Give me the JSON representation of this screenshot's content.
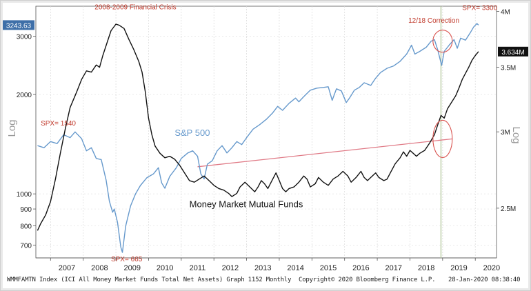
{
  "chart_data": {
    "type": "line",
    "left_axis": {
      "label": "Log",
      "ticks": [
        700,
        800,
        900,
        1000,
        2000,
        3000
      ],
      "range": [
        640,
        3700
      ],
      "scale": "log"
    },
    "right_axis": {
      "label": "Log",
      "ticks": [
        "2.5M",
        "3M",
        "3.5M",
        "4M"
      ],
      "tick_values": [
        2.5,
        3.0,
        3.5,
        4.0
      ],
      "range": [
        2.22,
        4.05
      ],
      "scale": "log"
    },
    "x_ticks": [
      "2007",
      "2008",
      "2009",
      "2010",
      "2011",
      "2012",
      "2013",
      "2014",
      "2015",
      "2016",
      "2017",
      "2018",
      "2019",
      "2020"
    ],
    "x_range": [
      2006.55,
      2020.65
    ],
    "grid": true,
    "series": [
      {
        "name": "S&P 500",
        "axis": "left",
        "color": "#6699cc",
        "last_value_label": "3243.63",
        "points": [
          [
            2006.6,
            1400
          ],
          [
            2006.8,
            1380
          ],
          [
            2007.0,
            1440
          ],
          [
            2007.2,
            1420
          ],
          [
            2007.4,
            1510
          ],
          [
            2007.6,
            1480
          ],
          [
            2007.75,
            1540
          ],
          [
            2007.95,
            1470
          ],
          [
            2008.1,
            1350
          ],
          [
            2008.25,
            1380
          ],
          [
            2008.4,
            1280
          ],
          [
            2008.55,
            1270
          ],
          [
            2008.7,
            1100
          ],
          [
            2008.8,
            950
          ],
          [
            2008.9,
            880
          ],
          [
            2008.95,
            900
          ],
          [
            2009.05,
            820
          ],
          [
            2009.15,
            690
          ],
          [
            2009.2,
            665
          ],
          [
            2009.3,
            800
          ],
          [
            2009.45,
            920
          ],
          [
            2009.6,
            1000
          ],
          [
            2009.75,
            1060
          ],
          [
            2009.95,
            1120
          ],
          [
            2010.15,
            1150
          ],
          [
            2010.3,
            1200
          ],
          [
            2010.4,
            1080
          ],
          [
            2010.5,
            1040
          ],
          [
            2010.65,
            1130
          ],
          [
            2010.85,
            1200
          ],
          [
            2011.0,
            1280
          ],
          [
            2011.2,
            1330
          ],
          [
            2011.35,
            1350
          ],
          [
            2011.5,
            1300
          ],
          [
            2011.6,
            1150
          ],
          [
            2011.7,
            1110
          ],
          [
            2011.8,
            1230
          ],
          [
            2011.95,
            1260
          ],
          [
            2012.1,
            1350
          ],
          [
            2012.25,
            1400
          ],
          [
            2012.4,
            1330
          ],
          [
            2012.55,
            1380
          ],
          [
            2012.7,
            1440
          ],
          [
            2012.85,
            1410
          ],
          [
            2013.0,
            1480
          ],
          [
            2013.2,
            1570
          ],
          [
            2013.4,
            1620
          ],
          [
            2013.6,
            1680
          ],
          [
            2013.8,
            1760
          ],
          [
            2013.95,
            1840
          ],
          [
            2014.1,
            1790
          ],
          [
            2014.3,
            1880
          ],
          [
            2014.5,
            1950
          ],
          [
            2014.6,
            1900
          ],
          [
            2014.75,
            1970
          ],
          [
            2014.95,
            2060
          ],
          [
            2015.15,
            2090
          ],
          [
            2015.35,
            2100
          ],
          [
            2015.5,
            2110
          ],
          [
            2015.62,
            1920
          ],
          [
            2015.75,
            2080
          ],
          [
            2015.9,
            2050
          ],
          [
            2016.05,
            1890
          ],
          [
            2016.15,
            1950
          ],
          [
            2016.3,
            2060
          ],
          [
            2016.45,
            2100
          ],
          [
            2016.6,
            2170
          ],
          [
            2016.8,
            2130
          ],
          [
            2016.95,
            2240
          ],
          [
            2017.1,
            2330
          ],
          [
            2017.3,
            2400
          ],
          [
            2017.5,
            2440
          ],
          [
            2017.7,
            2520
          ],
          [
            2017.9,
            2650
          ],
          [
            2018.05,
            2820
          ],
          [
            2018.15,
            2650
          ],
          [
            2018.3,
            2700
          ],
          [
            2018.5,
            2780
          ],
          [
            2018.65,
            2900
          ],
          [
            2018.75,
            2930
          ],
          [
            2018.85,
            2730
          ],
          [
            2018.97,
            2450
          ],
          [
            2019.05,
            2700
          ],
          [
            2019.2,
            2820
          ],
          [
            2019.35,
            2930
          ],
          [
            2019.45,
            2760
          ],
          [
            2019.55,
            2960
          ],
          [
            2019.7,
            2920
          ],
          [
            2019.85,
            3080
          ],
          [
            2019.95,
            3200
          ],
          [
            2020.05,
            3280
          ],
          [
            2020.1,
            3243.63
          ]
        ]
      },
      {
        "name": "Money Market Mutual Funds",
        "axis": "right",
        "color": "#111111",
        "last_value_label": "3.634M",
        "points": [
          [
            2006.6,
            2.37
          ],
          [
            2006.7,
            2.41
          ],
          [
            2006.85,
            2.46
          ],
          [
            2007.0,
            2.54
          ],
          [
            2007.15,
            2.68
          ],
          [
            2007.3,
            2.85
          ],
          [
            2007.45,
            3.02
          ],
          [
            2007.6,
            3.18
          ],
          [
            2007.8,
            3.3
          ],
          [
            2007.95,
            3.4
          ],
          [
            2008.1,
            3.47
          ],
          [
            2008.25,
            3.46
          ],
          [
            2008.4,
            3.52
          ],
          [
            2008.5,
            3.5
          ],
          [
            2008.6,
            3.6
          ],
          [
            2008.75,
            3.73
          ],
          [
            2008.85,
            3.82
          ],
          [
            2009.0,
            3.88
          ],
          [
            2009.1,
            3.87
          ],
          [
            2009.25,
            3.84
          ],
          [
            2009.4,
            3.74
          ],
          [
            2009.55,
            3.65
          ],
          [
            2009.7,
            3.55
          ],
          [
            2009.8,
            3.46
          ],
          [
            2009.9,
            3.3
          ],
          [
            2010.0,
            3.1
          ],
          [
            2010.1,
            2.98
          ],
          [
            2010.2,
            2.9
          ],
          [
            2010.35,
            2.85
          ],
          [
            2010.5,
            2.82
          ],
          [
            2010.65,
            2.83
          ],
          [
            2010.8,
            2.81
          ],
          [
            2010.95,
            2.77
          ],
          [
            2011.1,
            2.72
          ],
          [
            2011.25,
            2.67
          ],
          [
            2011.4,
            2.66
          ],
          [
            2011.55,
            2.68
          ],
          [
            2011.7,
            2.7
          ],
          [
            2011.85,
            2.67
          ],
          [
            2012.0,
            2.64
          ],
          [
            2012.15,
            2.62
          ],
          [
            2012.3,
            2.61
          ],
          [
            2012.45,
            2.59
          ],
          [
            2012.55,
            2.57
          ],
          [
            2012.7,
            2.59
          ],
          [
            2012.8,
            2.63
          ],
          [
            2012.95,
            2.66
          ],
          [
            2013.1,
            2.63
          ],
          [
            2013.25,
            2.6
          ],
          [
            2013.35,
            2.63
          ],
          [
            2013.45,
            2.67
          ],
          [
            2013.55,
            2.65
          ],
          [
            2013.65,
            2.62
          ],
          [
            2013.8,
            2.68
          ],
          [
            2013.9,
            2.72
          ],
          [
            2014.0,
            2.67
          ],
          [
            2014.1,
            2.62
          ],
          [
            2014.2,
            2.6
          ],
          [
            2014.3,
            2.62
          ],
          [
            2014.45,
            2.63
          ],
          [
            2014.6,
            2.66
          ],
          [
            2014.75,
            2.7
          ],
          [
            2014.85,
            2.68
          ],
          [
            2014.95,
            2.63
          ],
          [
            2015.1,
            2.65
          ],
          [
            2015.2,
            2.69
          ],
          [
            2015.35,
            2.66
          ],
          [
            2015.5,
            2.64
          ],
          [
            2015.65,
            2.68
          ],
          [
            2015.8,
            2.7
          ],
          [
            2015.95,
            2.73
          ],
          [
            2016.1,
            2.7
          ],
          [
            2016.2,
            2.66
          ],
          [
            2016.35,
            2.69
          ],
          [
            2016.5,
            2.73
          ],
          [
            2016.6,
            2.69
          ],
          [
            2016.7,
            2.67
          ],
          [
            2016.8,
            2.69
          ],
          [
            2016.95,
            2.72
          ],
          [
            2017.05,
            2.69
          ],
          [
            2017.2,
            2.67
          ],
          [
            2017.3,
            2.68
          ],
          [
            2017.4,
            2.72
          ],
          [
            2017.55,
            2.78
          ],
          [
            2017.7,
            2.82
          ],
          [
            2017.8,
            2.86
          ],
          [
            2017.9,
            2.83
          ],
          [
            2018.0,
            2.87
          ],
          [
            2018.1,
            2.85
          ],
          [
            2018.2,
            2.83
          ],
          [
            2018.3,
            2.85
          ],
          [
            2018.45,
            2.87
          ],
          [
            2018.6,
            2.92
          ],
          [
            2018.75,
            2.98
          ],
          [
            2018.85,
            3.05
          ],
          [
            2018.95,
            3.12
          ],
          [
            2019.05,
            3.1
          ],
          [
            2019.15,
            3.17
          ],
          [
            2019.25,
            3.21
          ],
          [
            2019.4,
            3.27
          ],
          [
            2019.5,
            3.33
          ],
          [
            2019.6,
            3.4
          ],
          [
            2019.7,
            3.45
          ],
          [
            2019.8,
            3.5
          ],
          [
            2019.9,
            3.56
          ],
          [
            2020.0,
            3.6
          ],
          [
            2020.1,
            3.634
          ]
        ]
      }
    ],
    "trendline": {
      "axis": "right",
      "color": "#e07a86",
      "from": [
        2011.5,
        2.76
      ],
      "to": [
        2019.3,
        2.95
      ]
    },
    "vertical_marker": {
      "x": 2018.95,
      "color": "#b3c79b"
    },
    "annotations": [
      {
        "text": "2008-2009 Financial Crisis",
        "x": 2008.35,
        "y": 3620,
        "axis": "left",
        "color": "#c0392b"
      },
      {
        "text": "12/18 Correction",
        "x": 2017.95,
        "y": 3300,
        "axis": "left",
        "color": "#c0392b"
      },
      {
        "text": "SPX= 3300",
        "x": 2019.6,
        "y": 3600,
        "axis": "left",
        "color": "#c0392b"
      },
      {
        "text": "SPX= 1540",
        "x": 2006.7,
        "y": 1610,
        "axis": "left",
        "color": "#c0392b"
      },
      {
        "text": "SPX= 665",
        "x": 2008.85,
        "y": 625,
        "axis": "left",
        "color": "#c0392b"
      },
      {
        "text": "S&P 500",
        "x": 2010.8,
        "y": 1500,
        "axis": "left",
        "color": "#6699cc"
      },
      {
        "text": "Money Market Mutual Funds",
        "x": 2011.25,
        "y": 2.505,
        "axis": "right",
        "color": "#111111"
      }
    ],
    "ellipses": [
      {
        "cx": 2019.0,
        "cy": 2900,
        "axis": "left",
        "color": "#d9534f"
      },
      {
        "cx": 2019.0,
        "cy": 2.95,
        "axis": "right",
        "color": "#d9534f"
      }
    ]
  },
  "footer": {
    "left": "WMMFAMTN Index (ICI All Money Market Funds Total Net Assets) Graph 1152  Monthly",
    "center": "Copyright© 2020 Bloomberg Finance L.P.",
    "right": "28-Jan-2020 08:38:40"
  }
}
